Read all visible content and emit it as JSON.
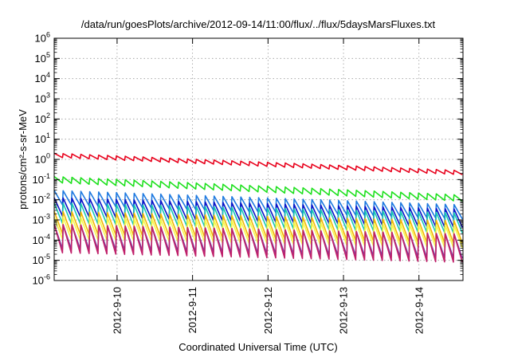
{
  "chart_data": {
    "type": "line",
    "title": "/data/run/goesPlots/archive/2012-09-14/11:00/flux/../flux/5daysMarsFluxes.txt",
    "xlabel": "Coordinated Universal Time (UTC)",
    "ylabel": "protons/cm²-s-sr-MeV",
    "yscale": "log",
    "ylim": [
      1e-06,
      1000000.0
    ],
    "xlim": [
      "2012-09-09 04:00",
      "2012-09-14 14:00"
    ],
    "y_ticks": [
      {
        "base": "10",
        "exp": "-6"
      },
      {
        "base": "10",
        "exp": "-5"
      },
      {
        "base": "10",
        "exp": "-4"
      },
      {
        "base": "10",
        "exp": "-3"
      },
      {
        "base": "10",
        "exp": "-2"
      },
      {
        "base": "10",
        "exp": "-1"
      },
      {
        "base": "10",
        "exp": "0"
      },
      {
        "base": "10",
        "exp": "1"
      },
      {
        "base": "10",
        "exp": "2"
      },
      {
        "base": "10",
        "exp": "3"
      },
      {
        "base": "10",
        "exp": "4"
      },
      {
        "base": "10",
        "exp": "5"
      },
      {
        "base": "10",
        "exp": "6"
      }
    ],
    "x_ticks": [
      {
        "label": "2012-9-10",
        "date": "2012-09-10"
      },
      {
        "label": "2012-9-11",
        "date": "2012-09-11"
      },
      {
        "label": "2012-9-12",
        "date": "2012-09-12"
      },
      {
        "label": "2012-9-13",
        "date": "2012-09-13"
      },
      {
        "label": "2012-9-14",
        "date": "2012-09-14"
      }
    ],
    "grid": true,
    "sawtooth_teeth": 46,
    "series": [
      {
        "color": "#e8001b",
        "start": 1.6,
        "end": 0.22,
        "amp": 0.1,
        "wid": 1.6
      },
      {
        "color": "#1ee01e",
        "start": 0.1,
        "end": 0.012,
        "amp": 0.15,
        "wid": 1.6
      },
      {
        "color": "#1f7ae0",
        "start": 0.013,
        "end": 0.0025,
        "amp": 0.35,
        "wid": 1.6
      },
      {
        "color": "#0a14c8",
        "start": 0.0045,
        "end": 0.0012,
        "amp": 0.45,
        "wid": 1.6
      },
      {
        "color": "#18c8b4",
        "start": 0.0022,
        "end": 0.0007,
        "amp": 0.5,
        "wid": 1.6
      },
      {
        "color": "#f2b705",
        "start": 0.00075,
        "end": 0.00025,
        "amp": 0.55,
        "wid": 1.6
      },
      {
        "color": "#f7f74a",
        "start": 0.0004,
        "end": 0.00015,
        "amp": 0.55,
        "wid": 1.6
      },
      {
        "color": "#7f3fa0",
        "start": 0.00015,
        "end": 5e-05,
        "amp": 0.6,
        "wid": 1.6
      },
      {
        "color": "#c0206a",
        "start": 0.00012,
        "end": 4e-05,
        "amp": 0.7,
        "wid": 1.6
      }
    ]
  }
}
